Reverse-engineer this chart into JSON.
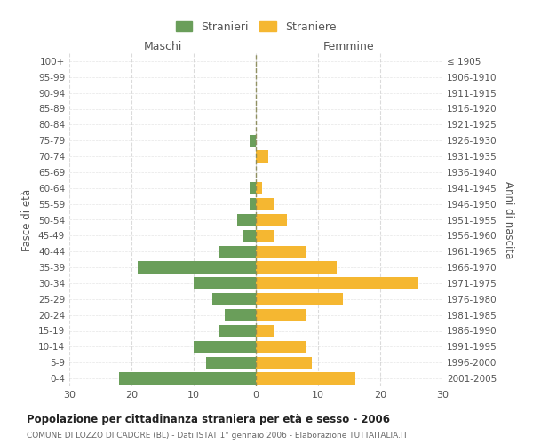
{
  "age_groups": [
    "100+",
    "95-99",
    "90-94",
    "85-89",
    "80-84",
    "75-79",
    "70-74",
    "65-69",
    "60-64",
    "55-59",
    "50-54",
    "45-49",
    "40-44",
    "35-39",
    "30-34",
    "25-29",
    "20-24",
    "15-19",
    "10-14",
    "5-9",
    "0-4"
  ],
  "birth_years": [
    "≤ 1905",
    "1906-1910",
    "1911-1915",
    "1916-1920",
    "1921-1925",
    "1926-1930",
    "1931-1935",
    "1936-1940",
    "1941-1945",
    "1946-1950",
    "1951-1955",
    "1956-1960",
    "1961-1965",
    "1966-1970",
    "1971-1975",
    "1976-1980",
    "1981-1985",
    "1986-1990",
    "1991-1995",
    "1996-2000",
    "2001-2005"
  ],
  "maschi": [
    0,
    0,
    0,
    0,
    0,
    1,
    0,
    0,
    1,
    1,
    3,
    2,
    6,
    19,
    10,
    7,
    5,
    6,
    10,
    8,
    22
  ],
  "femmine": [
    0,
    0,
    0,
    0,
    0,
    0,
    2,
    0,
    1,
    3,
    5,
    3,
    8,
    13,
    26,
    14,
    8,
    3,
    8,
    9,
    16
  ],
  "maschi_color": "#6a9e5a",
  "femmine_color": "#f5b731",
  "title": "Popolazione per cittadinanza straniera per età e sesso - 2006",
  "subtitle": "COMUNE DI LOZZO DI CADORE (BL) - Dati ISTAT 1° gennaio 2006 - Elaborazione TUTTAITALIA.IT",
  "ylabel_left": "Fasce di età",
  "ylabel_right": "Anni di nascita",
  "xlabel_left": "Maschi",
  "xlabel_right": "Femmine",
  "xlim": 30,
  "legend_stranieri": "Stranieri",
  "legend_straniere": "Straniere",
  "background_color": "#ffffff",
  "grid_color": "#cccccc",
  "axis_label_color": "#555555",
  "title_color": "#222222",
  "subtitle_color": "#666666"
}
